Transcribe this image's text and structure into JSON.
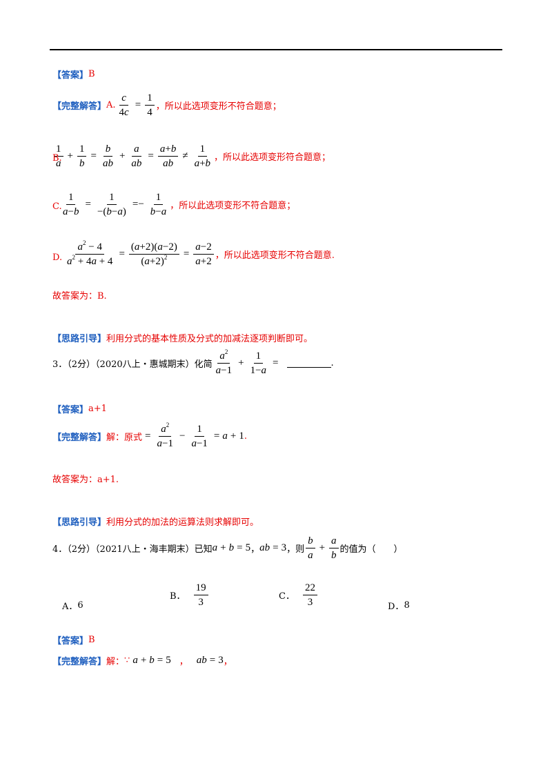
{
  "tags": {
    "answer": "【答案】",
    "solution": "【完整解答】",
    "hint": "【思路引导】"
  },
  "block1": {
    "answer_value": "B",
    "option_a_label": "A.",
    "option_a_tail": "，所以此选项变形不符合题意；",
    "option_b_label": "B.",
    "option_b_tail": "，所以此选项变形符合题意；",
    "option_c_label": "C.",
    "option_c_tail": "，所以此选项变形不符合题意；",
    "option_d_label": "D.",
    "option_d_tail": "，所以此选项变形不符合题意.",
    "conclusion": "故答案为：B.",
    "hint_text": "利用分式的基本性质及分式的加减法逐项判断即可。"
  },
  "q3": {
    "number": "3．（2分）（2020八上・惠城期末）化简",
    "answer_value": "a+1",
    "solution_prefix": "解：原式",
    "conclusion": "故答案为：a+1.",
    "hint_text": "利用分式的加法的运算法则求解即可。"
  },
  "q4": {
    "number": "4．（2分）（2021八上・海丰期末）已知",
    "sep1": "，",
    "sep2": "，则",
    "tail": "的值为（　　）",
    "options": [
      {
        "label": "A．",
        "value": "6"
      },
      {
        "label": "B．",
        "num": "19",
        "den": "3"
      },
      {
        "label": "C．",
        "num": "22",
        "den": "3"
      },
      {
        "label": "D．",
        "value": "8"
      }
    ],
    "answer_value": "B",
    "solution_prefix": "解：",
    "because": "∵"
  },
  "colors": {
    "tag": "#1f5fbf",
    "body_red": "#e60000",
    "rule": "#000000"
  }
}
